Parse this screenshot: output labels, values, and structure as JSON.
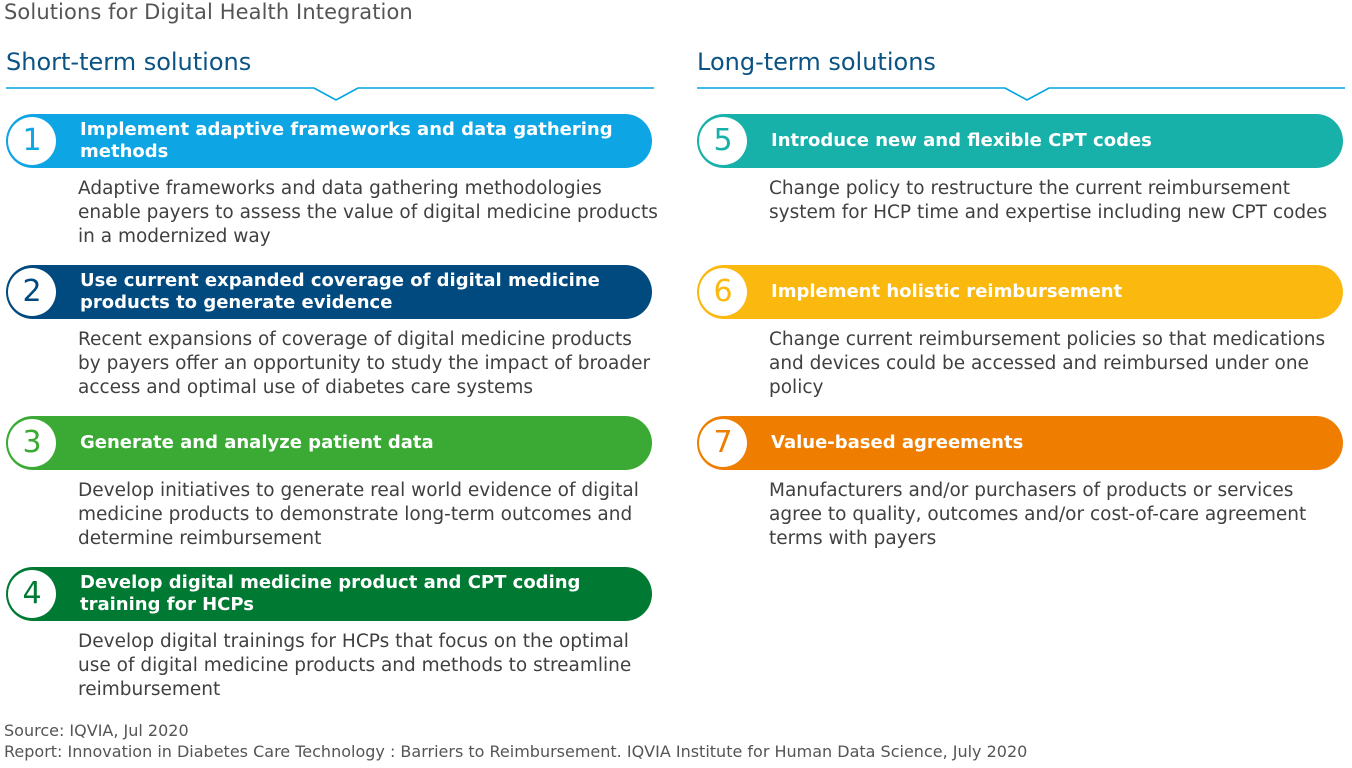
{
  "title": "Solutions for Digital Health Integration",
  "short_term": {
    "heading": "Short-term solutions",
    "items": [
      {
        "number": "1",
        "title": "Implement adaptive frameworks and data gathering methods",
        "description": "Adaptive frameworks and data gathering methodologies enable payers to assess the value of digital medicine products in a modernized way",
        "color": "#0ea5e4"
      },
      {
        "number": "2",
        "title": "Use current expanded coverage of digital medicine products to generate evidence",
        "description": "Recent expansions of coverage of digital medicine products by payers offer an opportunity to study the impact of broader access and optimal use of diabetes care systems",
        "color": "#004a7f"
      },
      {
        "number": "3",
        "title": "Generate and analyze patient data",
        "description": "Develop initiatives to generate real world evidence of digital medicine products to demonstrate long-term outcomes and determine reimbursement",
        "color": "#3aaa35"
      },
      {
        "number": "4",
        "title": "Develop digital medicine product and CPT coding training for HCPs",
        "description": "Develop digital trainings for HCPs that focus on the optimal use of digital medicine products and methods to streamline reimbursement",
        "color": "#007a33"
      }
    ]
  },
  "long_term": {
    "heading": "Long-term solutions",
    "items": [
      {
        "number": "5",
        "title": "Introduce new and flexible CPT codes",
        "description": "Change policy to restructure the current reimbursement system for HCP time and expertise including new CPT codes",
        "color": "#17b1a9"
      },
      {
        "number": "6",
        "title": "Implement holistic reimbursement",
        "description": "Change current reimbursement policies so that medications and devices could be accessed and reimbursed under one policy",
        "color": "#fbb80f"
      },
      {
        "number": "7",
        "title": "Value-based agreements",
        "description": "Manufacturers and/or purchasers of products or services agree to quality, outcomes and/or cost-of-care agreement terms with payers",
        "color": "#ef7d00"
      }
    ]
  },
  "footer": {
    "source": "Source: IQVIA, Jul 2020",
    "report": "Report: Innovation in Diabetes Care Technology : Barriers to Reimbursement. IQVIA Institute for Human Data Science, July 2020"
  },
  "colors": {
    "heading": "#0b5384",
    "rule": "#00a3e0"
  }
}
